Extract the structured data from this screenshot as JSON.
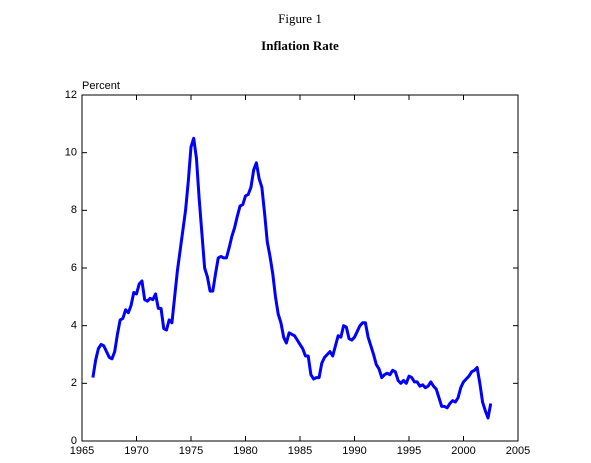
{
  "chart_data": {
    "type": "line",
    "title": "Figure 1",
    "subtitle": "Inflation Rate",
    "y_label": "Percent",
    "x": [
      1966,
      1966.25,
      1966.5,
      1966.75,
      1967,
      1967.25,
      1967.5,
      1967.75,
      1968,
      1968.25,
      1968.5,
      1968.75,
      1969,
      1969.25,
      1969.5,
      1969.75,
      1970,
      1970.25,
      1970.5,
      1970.75,
      1971,
      1971.25,
      1971.5,
      1971.75,
      1972,
      1972.25,
      1972.5,
      1972.75,
      1973,
      1973.25,
      1973.5,
      1973.75,
      1974,
      1974.25,
      1974.5,
      1974.75,
      1975,
      1975.25,
      1975.5,
      1975.75,
      1976,
      1976.25,
      1976.5,
      1976.75,
      1977,
      1977.25,
      1977.5,
      1977.75,
      1978,
      1978.25,
      1978.5,
      1978.75,
      1979,
      1979.25,
      1979.5,
      1979.75,
      1980,
      1980.25,
      1980.5,
      1980.75,
      1981,
      1981.25,
      1981.5,
      1981.75,
      1982,
      1982.25,
      1982.5,
      1982.75,
      1983,
      1983.25,
      1983.5,
      1983.75,
      1984,
      1984.25,
      1984.5,
      1984.75,
      1985,
      1985.25,
      1985.5,
      1985.75,
      1986,
      1986.25,
      1986.5,
      1986.75,
      1987,
      1987.25,
      1987.5,
      1987.75,
      1988,
      1988.25,
      1988.5,
      1988.75,
      1989,
      1989.25,
      1989.5,
      1989.75,
      1990,
      1990.25,
      1990.5,
      1990.75,
      1991,
      1991.25,
      1991.5,
      1991.75,
      1992,
      1992.25,
      1992.5,
      1992.75,
      1993,
      1993.25,
      1993.5,
      1993.75,
      1994,
      1994.25,
      1994.5,
      1994.75,
      1995,
      1995.25,
      1995.5,
      1995.75,
      1996,
      1996.25,
      1996.5,
      1996.75,
      1997,
      1997.25,
      1997.5,
      1997.75,
      1998,
      1998.25,
      1998.5,
      1998.75,
      1999,
      1999.25,
      1999.5,
      1999.75,
      2000,
      2000.25,
      2000.5,
      2000.75,
      2001,
      2001.25,
      2001.5,
      2001.75,
      2002,
      2002.25,
      2002.5
    ],
    "series": [
      {
        "name": "Inflation Rate",
        "color": "#0000ff",
        "values": [
          2.2,
          2.8,
          3.2,
          3.35,
          3.3,
          3.1,
          2.9,
          2.85,
          3.1,
          3.7,
          4.2,
          4.25,
          4.55,
          4.45,
          4.7,
          5.15,
          5.1,
          5.45,
          5.55,
          4.9,
          4.85,
          4.95,
          4.9,
          5.1,
          4.6,
          4.6,
          3.9,
          3.85,
          4.2,
          4.1,
          5.0,
          5.9,
          6.6,
          7.3,
          8.0,
          9.0,
          10.2,
          10.5,
          9.8,
          8.4,
          7.2,
          6.0,
          5.7,
          5.2,
          5.2,
          5.8,
          6.35,
          6.4,
          6.35,
          6.35,
          6.7,
          7.1,
          7.4,
          7.8,
          8.15,
          8.2,
          8.5,
          8.55,
          8.8,
          9.4,
          9.65,
          9.1,
          8.8,
          7.9,
          6.9,
          6.4,
          5.8,
          5.0,
          4.4,
          4.1,
          3.6,
          3.4,
          3.75,
          3.7,
          3.65,
          3.5,
          3.35,
          3.2,
          2.95,
          2.95,
          2.3,
          2.15,
          2.2,
          2.2,
          2.7,
          2.9,
          3.0,
          3.1,
          2.95,
          3.3,
          3.65,
          3.6,
          4.0,
          3.95,
          3.55,
          3.5,
          3.6,
          3.8,
          4.0,
          4.1,
          4.1,
          3.6,
          3.3,
          3.0,
          2.65,
          2.5,
          2.2,
          2.3,
          2.35,
          2.3,
          2.45,
          2.4,
          2.1,
          2.0,
          2.1,
          2.0,
          2.25,
          2.2,
          2.05,
          2.05,
          1.9,
          1.95,
          1.85,
          1.9,
          2.05,
          1.9,
          1.8,
          1.5,
          1.2,
          1.2,
          1.15,
          1.3,
          1.4,
          1.35,
          1.5,
          1.85,
          2.05,
          2.15,
          2.25,
          2.4,
          2.45,
          2.55,
          2.0,
          1.35,
          1.05,
          0.8,
          1.3
        ]
      }
    ],
    "xlim": [
      1965,
      2005
    ],
    "xticks": [
      1965,
      1970,
      1975,
      1980,
      1985,
      1990,
      1995,
      2000,
      2005
    ],
    "ylim": [
      0,
      12
    ],
    "yticks": [
      0,
      2,
      4,
      6,
      8,
      10,
      12
    ],
    "grid": false
  }
}
